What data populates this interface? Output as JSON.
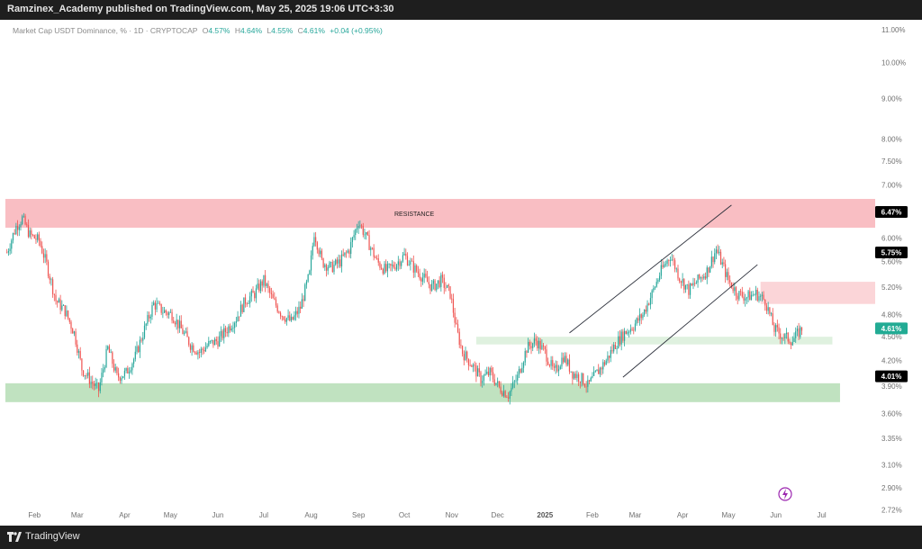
{
  "header": {
    "publisher_text": "Ramzinex_Academy published on TradingView.com, May 25, 2025 19:06 UTC+3:30"
  },
  "legend": {
    "symbol": "Market Cap USDT Dominance, % · 1D · CRYPTOCAP",
    "open_label": "O",
    "open": "4.57%",
    "high_label": "H",
    "high": "4.64%",
    "low_label": "L",
    "low": "4.55%",
    "close_label": "C",
    "close": "4.61%",
    "change": "+0.04 (+0.95%)"
  },
  "footer": {
    "brand": "TradingView"
  },
  "colors": {
    "up": "#26a69a",
    "down": "#ef5350",
    "resistance_zone": "#f8b7bd",
    "support_zone": "#b9dfb9",
    "last_price_badge": "#22ab94",
    "level_badge": "#000000"
  },
  "chart_data": {
    "type": "candlestick",
    "y_scale": "log",
    "ylim": [
      2.68,
      11.2
    ],
    "y_ticks": [
      "11.00%",
      "10.00%",
      "9.00%",
      "8.00%",
      "7.50%",
      "7.00%",
      "6.00%",
      "5.60%",
      "5.20%",
      "4.80%",
      "4.50%",
      "4.20%",
      "3.90%",
      "3.60%",
      "3.35%",
      "3.10%",
      "2.90%",
      "2.72%"
    ],
    "y_tick_values": [
      11.0,
      10.0,
      9.0,
      8.0,
      7.5,
      7.0,
      6.0,
      5.6,
      5.2,
      4.8,
      4.5,
      4.2,
      3.9,
      3.6,
      3.35,
      3.1,
      2.9,
      2.72
    ],
    "x_ticks": [
      "Feb",
      "Mar",
      "Apr",
      "May",
      "Jun",
      "Jul",
      "Aug",
      "Sep",
      "Oct",
      "Nov",
      "Dec",
      "2025",
      "Feb",
      "Mar",
      "Apr",
      "May",
      "Jun",
      "Jul"
    ],
    "x_tick_days": [
      0,
      28,
      59,
      89,
      120,
      150,
      181,
      212,
      242,
      273,
      303,
      334,
      365,
      393,
      424,
      454,
      485,
      515
    ],
    "xlim_days": [
      -19,
      550
    ],
    "price_path": [
      [
        -18,
        5.75
      ],
      [
        -12,
        6.2
      ],
      [
        -8,
        6.35
      ],
      [
        -3,
        6.05
      ],
      [
        3,
        5.95
      ],
      [
        8,
        5.55
      ],
      [
        14,
        5.0
      ],
      [
        20,
        4.85
      ],
      [
        26,
        4.55
      ],
      [
        31,
        4.1
      ],
      [
        37,
        3.95
      ],
      [
        42,
        3.85
      ],
      [
        48,
        4.35
      ],
      [
        54,
        4.0
      ],
      [
        60,
        4.05
      ],
      [
        66,
        4.25
      ],
      [
        72,
        4.6
      ],
      [
        78,
        4.95
      ],
      [
        84,
        4.85
      ],
      [
        90,
        4.8
      ],
      [
        96,
        4.6
      ],
      [
        102,
        4.4
      ],
      [
        108,
        4.3
      ],
      [
        114,
        4.4
      ],
      [
        120,
        4.45
      ],
      [
        126,
        4.6
      ],
      [
        132,
        4.75
      ],
      [
        138,
        5.0
      ],
      [
        144,
        5.1
      ],
      [
        150,
        5.3
      ],
      [
        156,
        5.0
      ],
      [
        162,
        4.8
      ],
      [
        168,
        4.7
      ],
      [
        174,
        4.9
      ],
      [
        180,
        5.4
      ],
      [
        183,
        6.1
      ],
      [
        188,
        5.6
      ],
      [
        194,
        5.5
      ],
      [
        200,
        5.6
      ],
      [
        206,
        5.8
      ],
      [
        212,
        6.3
      ],
      [
        218,
        5.95
      ],
      [
        224,
        5.6
      ],
      [
        230,
        5.45
      ],
      [
        236,
        5.55
      ],
      [
        242,
        5.7
      ],
      [
        248,
        5.5
      ],
      [
        254,
        5.35
      ],
      [
        260,
        5.2
      ],
      [
        266,
        5.3
      ],
      [
        272,
        5.1
      ],
      [
        276,
        4.6
      ],
      [
        280,
        4.3
      ],
      [
        286,
        4.15
      ],
      [
        292,
        3.98
      ],
      [
        298,
        4.05
      ],
      [
        304,
        3.88
      ],
      [
        310,
        3.8
      ],
      [
        316,
        4.0
      ],
      [
        322,
        4.35
      ],
      [
        328,
        4.45
      ],
      [
        334,
        4.3
      ],
      [
        340,
        4.05
      ],
      [
        346,
        4.25
      ],
      [
        352,
        4.05
      ],
      [
        358,
        3.98
      ],
      [
        362,
        3.9
      ],
      [
        368,
        4.05
      ],
      [
        374,
        4.2
      ],
      [
        380,
        4.4
      ],
      [
        386,
        4.55
      ],
      [
        392,
        4.65
      ],
      [
        398,
        4.8
      ],
      [
        404,
        5.1
      ],
      [
        410,
        5.45
      ],
      [
        416,
        5.7
      ],
      [
        422,
        5.35
      ],
      [
        428,
        5.15
      ],
      [
        434,
        5.3
      ],
      [
        440,
        5.45
      ],
      [
        446,
        5.8
      ],
      [
        450,
        5.55
      ],
      [
        454,
        5.3
      ],
      [
        460,
        5.1
      ],
      [
        466,
        5.05
      ],
      [
        472,
        5.1
      ],
      [
        478,
        5.0
      ],
      [
        484,
        4.6
      ],
      [
        490,
        4.5
      ],
      [
        496,
        4.45
      ],
      [
        502,
        4.61
      ]
    ],
    "zones": [
      {
        "name": "resistance",
        "label": "RESISTANCE",
        "from_day": -19,
        "to_day": 550,
        "low": 6.18,
        "high": 6.72
      },
      {
        "name": "support",
        "from_day": -19,
        "to_day": 527,
        "low": 3.72,
        "high": 3.93
      },
      {
        "name": "mid-resistance",
        "from_day": 475,
        "to_day": 550,
        "low": 4.95,
        "high": 5.28
      },
      {
        "name": "mid-support",
        "from_day": 289,
        "to_day": 522,
        "low": 4.4,
        "high": 4.5
      }
    ],
    "trendlines": [
      {
        "name": "wedge-upper",
        "from": [
          350,
          4.55
        ],
        "to": [
          456,
          6.6
        ]
      },
      {
        "name": "wedge-lower",
        "from": [
          385,
          4.0
        ],
        "to": [
          473,
          5.55
        ]
      }
    ],
    "level_badges": [
      {
        "name": "resistance-level",
        "value": 6.47,
        "text": "6.47%"
      },
      {
        "name": "upper-level",
        "value": 5.75,
        "text": "5.75%"
      },
      {
        "name": "last-price",
        "value": 4.61,
        "text": "4.61%",
        "accent": true
      },
      {
        "name": "support-level",
        "value": 4.01,
        "text": "4.01%"
      }
    ]
  }
}
